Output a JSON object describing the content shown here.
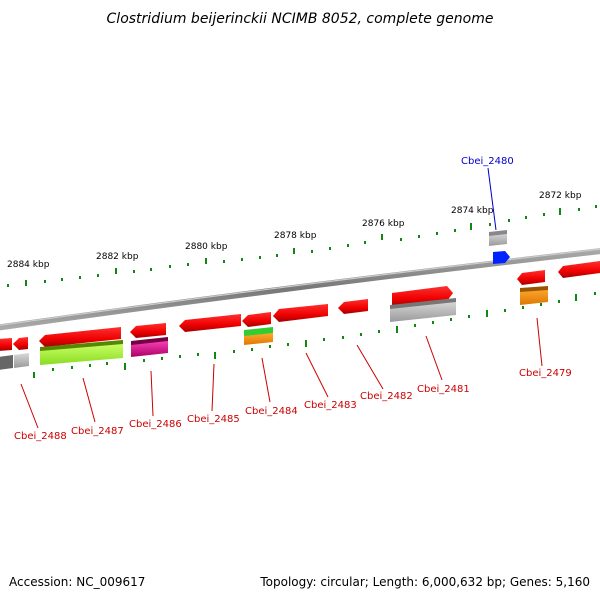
{
  "title": "Clostridium beijerinckii NCIMB 8052, complete genome",
  "footer": {
    "accession": "Accession: NC_009617",
    "topology": "Topology: circular; Length: 6,000,632 bp; Genes: 5,160"
  },
  "scale_labels": [
    "2884 kbp",
    "2882 kbp",
    "2880 kbp",
    "2878 kbp",
    "2876 kbp",
    "2874 kbp",
    "2872 kbp"
  ],
  "gene_labels": [
    "Cbei_2480",
    "Cbei_2479",
    "Cbei_2481",
    "Cbei_2482",
    "Cbei_2483",
    "Cbei_2484",
    "Cbei_2485",
    "Cbei_2486",
    "Cbei_2487",
    "Cbei_2488"
  ],
  "colors": {
    "gene": "#ff0000",
    "gene_dark": "#b00000",
    "backbone": "#888888",
    "tick": "#118811",
    "label_red": "#cc0000",
    "label_blue": "#0000cc",
    "feature_grey": "#c0c0c0",
    "feature_lime": "#bbff44",
    "feature_magenta": "#ee1199",
    "feature_green": "#33cc33",
    "feature_orange": "#ff9911",
    "feature_blue": "#0022ff"
  }
}
